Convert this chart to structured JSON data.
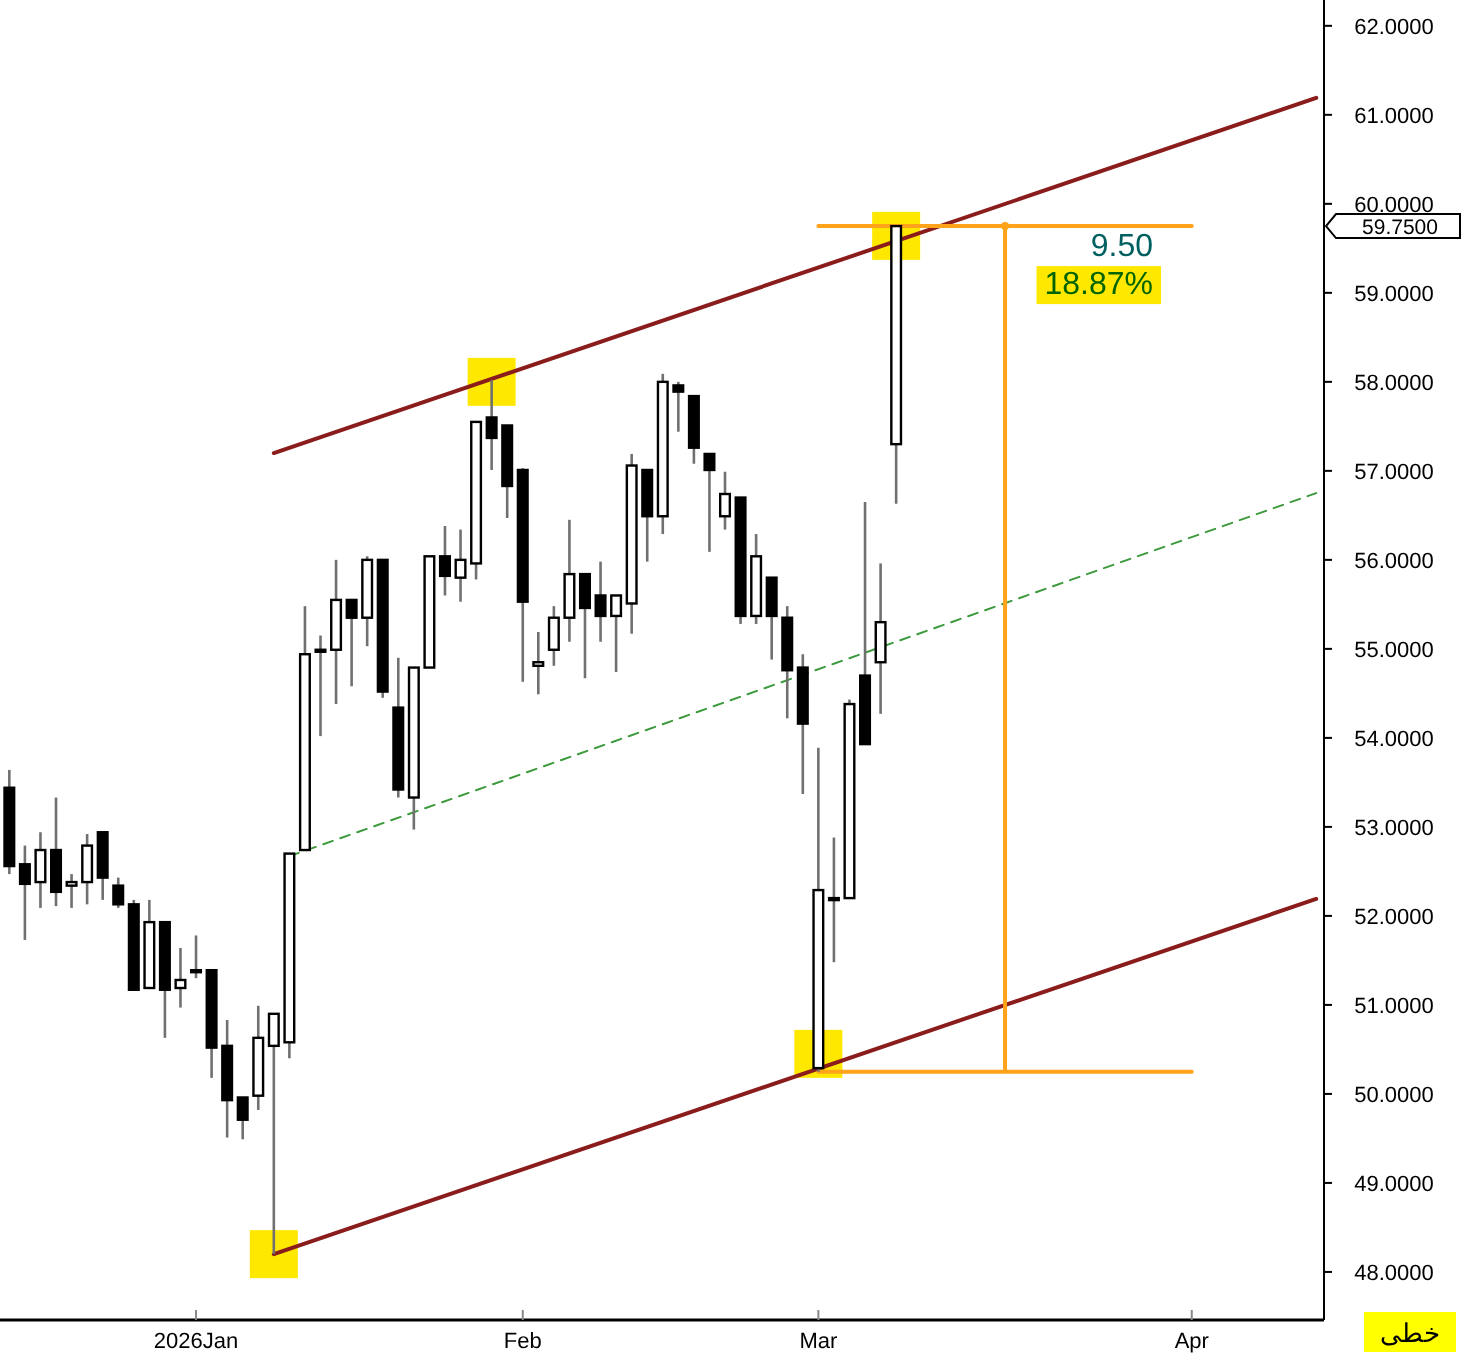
{
  "chart_data": {
    "type": "candlestick",
    "categories": [
      null,
      null,
      null,
      null,
      null,
      null,
      null,
      null,
      null,
      null,
      null,
      null,
      "2026Jan",
      null,
      null,
      null,
      null,
      null,
      null,
      null,
      null,
      null,
      null,
      null,
      null,
      null,
      null,
      null,
      null,
      null,
      null,
      null,
      null,
      "Feb",
      null,
      null,
      null,
      null,
      null,
      null,
      null,
      null,
      null,
      null,
      null,
      null,
      null,
      null,
      null,
      null,
      null,
      null,
      "Mar",
      null,
      null,
      null,
      null,
      null,
      null,
      null,
      null,
      null,
      null,
      null,
      null,
      null,
      null,
      null,
      null,
      null,
      null,
      null,
      null,
      null,
      null,
      null,
      "Apr",
      null,
      null,
      null,
      null,
      null,
      null,
      null,
      null
    ],
    "ohlc": [
      [
        53.44,
        53.64,
        52.47,
        52.56
      ],
      [
        52.58,
        52.79,
        51.73,
        52.36
      ],
      [
        52.38,
        52.94,
        52.09,
        52.74
      ],
      [
        52.74,
        53.33,
        52.11,
        52.27
      ],
      [
        52.34,
        52.47,
        52.09,
        52.38
      ],
      [
        52.38,
        52.92,
        52.13,
        52.79
      ],
      [
        52.94,
        52.94,
        52.18,
        52.43
      ],
      [
        52.34,
        52.43,
        52.09,
        52.13
      ],
      [
        52.13,
        52.18,
        51.17,
        51.17
      ],
      [
        51.19,
        52.18,
        51.19,
        51.93
      ],
      [
        51.93,
        51.93,
        50.63,
        51.17
      ],
      [
        51.19,
        51.64,
        50.97,
        51.28
      ],
      [
        51.39,
        51.78,
        51.3,
        51.39
      ],
      [
        51.39,
        51.39,
        50.18,
        50.52
      ],
      [
        50.54,
        50.83,
        49.51,
        49.93
      ],
      [
        49.96,
        49.96,
        49.49,
        49.71
      ],
      [
        49.98,
        50.99,
        49.82,
        50.63
      ],
      [
        50.54,
        50.9,
        48.2,
        50.9
      ],
      [
        50.58,
        52.7,
        50.4,
        52.7
      ],
      [
        52.74,
        55.48,
        52.74,
        54.94
      ],
      [
        54.99,
        55.15,
        54.02,
        54.99
      ],
      [
        54.99,
        56.0,
        54.38,
        55.55
      ],
      [
        55.55,
        55.55,
        54.58,
        55.35
      ],
      [
        55.35,
        56.04,
        55.03,
        56.0
      ],
      [
        56.0,
        56.0,
        54.45,
        54.52
      ],
      [
        54.34,
        54.9,
        53.33,
        53.42
      ],
      [
        53.33,
        54.79,
        52.97,
        54.79
      ],
      [
        54.79,
        56.04,
        54.79,
        56.04
      ],
      [
        56.04,
        56.38,
        55.6,
        55.82
      ],
      [
        55.8,
        56.34,
        55.53,
        56.0
      ],
      [
        55.96,
        57.55,
        55.78,
        57.55
      ],
      [
        57.6,
        58.02,
        57.01,
        57.37
      ],
      [
        57.51,
        57.51,
        56.47,
        56.83
      ],
      [
        57.01,
        57.03,
        54.63,
        55.53
      ],
      [
        54.81,
        55.19,
        54.49,
        54.85
      ],
      [
        54.99,
        55.48,
        54.81,
        55.35
      ],
      [
        55.35,
        56.45,
        55.08,
        55.84
      ],
      [
        55.84,
        55.84,
        54.67,
        55.46
      ],
      [
        55.6,
        55.98,
        55.08,
        55.37
      ],
      [
        55.37,
        55.6,
        54.74,
        55.6
      ],
      [
        55.51,
        57.19,
        55.17,
        57.06
      ],
      [
        57.01,
        57.01,
        55.98,
        56.49
      ],
      [
        56.49,
        58.09,
        56.29,
        58.0
      ],
      [
        57.96,
        58.0,
        57.44,
        57.89
      ],
      [
        57.84,
        57.84,
        57.08,
        57.26
      ],
      [
        57.19,
        57.19,
        56.09,
        57.01
      ],
      [
        56.49,
        56.99,
        56.34,
        56.74
      ],
      [
        56.7,
        56.7,
        55.28,
        55.37
      ],
      [
        55.37,
        56.29,
        55.28,
        56.04
      ],
      [
        55.8,
        55.8,
        54.88,
        55.37
      ],
      [
        55.35,
        55.48,
        54.22,
        54.76
      ],
      [
        54.79,
        54.94,
        53.37,
        54.16
      ],
      [
        50.29,
        53.89,
        50.25,
        52.29
      ],
      [
        52.2,
        52.88,
        51.48,
        52.2
      ],
      [
        52.2,
        54.43,
        52.2,
        54.38
      ],
      [
        54.7,
        56.65,
        53.93,
        53.93
      ],
      [
        54.85,
        55.96,
        54.27,
        55.3
      ],
      [
        57.3,
        59.75,
        56.63,
        59.75
      ],
      null,
      null,
      null,
      null,
      null,
      null,
      null,
      null,
      null,
      null,
      null,
      null,
      null,
      null,
      null,
      null,
      null,
      null,
      null,
      null,
      null,
      null,
      null,
      null,
      null,
      null,
      null
    ],
    "series": [
      {
        "type": "scatter",
        "marker": "square",
        "color": "#ffe800",
        "values": [
          null,
          null,
          null,
          null,
          null,
          null,
          null,
          null,
          null,
          null,
          null,
          null,
          null,
          null,
          null,
          null,
          null,
          48.2,
          null,
          null,
          null,
          null,
          null,
          null,
          null,
          null,
          null,
          null,
          null,
          null,
          null,
          58.0,
          null,
          null,
          null,
          null,
          null,
          null,
          null,
          null,
          null,
          null,
          null,
          null,
          null,
          null,
          null,
          null,
          null,
          null,
          null,
          null,
          50.45,
          null,
          null,
          null,
          null,
          59.64,
          null,
          null,
          null,
          null,
          null,
          null,
          null,
          null,
          null,
          null,
          null,
          null,
          null,
          null,
          null,
          null,
          null,
          null,
          null,
          null,
          null,
          null,
          null,
          null,
          null,
          null,
          null
        ]
      },
      {
        "type": "line",
        "color": "#8b1c1c",
        "values": [
          null,
          null,
          null,
          null,
          null,
          null,
          null,
          null,
          null,
          null,
          null,
          null,
          null,
          null,
          null,
          null,
          null,
          57.2,
          null,
          null,
          null,
          null,
          null,
          null,
          null,
          null,
          null,
          null,
          null,
          null,
          null,
          null,
          null,
          null,
          null,
          null,
          null,
          null,
          null,
          null,
          null,
          null,
          null,
          null,
          null,
          null,
          null,
          null,
          null,
          null,
          null,
          null,
          null,
          null,
          null,
          null,
          null,
          null,
          null,
          null,
          null,
          null,
          null,
          null,
          null,
          null,
          null,
          null,
          null,
          null,
          null,
          null,
          null,
          null,
          null,
          null,
          null,
          null,
          null,
          null,
          null,
          null,
          null,
          null,
          61.19
        ]
      },
      {
        "type": "line",
        "color": "#8b1c1c",
        "values": [
          null,
          null,
          null,
          null,
          null,
          null,
          null,
          null,
          null,
          null,
          null,
          null,
          null,
          null,
          null,
          null,
          null,
          48.2,
          null,
          null,
          null,
          null,
          null,
          null,
          null,
          null,
          null,
          null,
          null,
          null,
          null,
          null,
          null,
          null,
          null,
          null,
          null,
          null,
          null,
          null,
          null,
          null,
          null,
          null,
          null,
          null,
          null,
          null,
          null,
          null,
          null,
          null,
          null,
          null,
          null,
          null,
          null,
          null,
          null,
          null,
          null,
          null,
          null,
          null,
          null,
          null,
          null,
          null,
          null,
          null,
          null,
          null,
          null,
          null,
          null,
          null,
          null,
          null,
          null,
          null,
          null,
          null,
          null,
          null,
          52.19
        ]
      },
      {
        "type": "line",
        "color": "#3c9a3c",
        "line_style": "dashed",
        "values": [
          null,
          null,
          null,
          null,
          null,
          null,
          null,
          null,
          null,
          null,
          null,
          null,
          null,
          null,
          null,
          null,
          null,
          null,
          52.67,
          null,
          null,
          null,
          null,
          null,
          null,
          null,
          null,
          null,
          null,
          null,
          null,
          null,
          null,
          null,
          null,
          null,
          null,
          null,
          null,
          null,
          null,
          null,
          null,
          null,
          null,
          null,
          null,
          null,
          null,
          null,
          null,
          null,
          null,
          null,
          null,
          null,
          null,
          null,
          null,
          null,
          null,
          null,
          null,
          null,
          null,
          null,
          null,
          null,
          null,
          null,
          null,
          null,
          null,
          null,
          null,
          null,
          null,
          null,
          null,
          null,
          null,
          null,
          null,
          null,
          56.75
        ]
      },
      {
        "type": "line",
        "color": "#ffa31a",
        "values": [
          null,
          null,
          null,
          null,
          null,
          null,
          null,
          null,
          null,
          null,
          null,
          null,
          null,
          null,
          null,
          null,
          null,
          null,
          null,
          null,
          null,
          null,
          null,
          null,
          null,
          null,
          null,
          null,
          null,
          null,
          null,
          null,
          null,
          null,
          null,
          null,
          null,
          null,
          null,
          null,
          null,
          null,
          null,
          null,
          null,
          null,
          null,
          null,
          null,
          null,
          null,
          null,
          59.75,
          null,
          null,
          null,
          null,
          null,
          null,
          null,
          null,
          null,
          null,
          null,
          null,
          null,
          null,
          null,
          null,
          null,
          null,
          null,
          null,
          null,
          null,
          null,
          59.75,
          null,
          null,
          null,
          null,
          null,
          null,
          null,
          null
        ]
      },
      {
        "type": "line",
        "color": "#ffa31a",
        "values": [
          null,
          null,
          null,
          null,
          null,
          null,
          null,
          null,
          null,
          null,
          null,
          null,
          null,
          null,
          null,
          null,
          null,
          null,
          null,
          null,
          null,
          null,
          null,
          null,
          null,
          null,
          null,
          null,
          null,
          null,
          null,
          null,
          null,
          null,
          null,
          null,
          null,
          null,
          null,
          null,
          null,
          null,
          null,
          null,
          null,
          null,
          null,
          null,
          null,
          null,
          null,
          null,
          50.25,
          null,
          null,
          null,
          null,
          null,
          null,
          null,
          null,
          null,
          null,
          null,
          null,
          null,
          null,
          null,
          null,
          null,
          null,
          null,
          null,
          null,
          null,
          null,
          50.25,
          null,
          null,
          null,
          null,
          null,
          null,
          null,
          null
        ]
      },
      {
        "type": "scatter",
        "marker": "circle",
        "color": "#ffa31a",
        "values": [
          null,
          null,
          null,
          null,
          null,
          null,
          null,
          null,
          null,
          null,
          null,
          null,
          null,
          null,
          null,
          null,
          null,
          null,
          null,
          null,
          null,
          null,
          null,
          null,
          null,
          null,
          null,
          null,
          null,
          null,
          null,
          null,
          null,
          null,
          null,
          null,
          null,
          null,
          null,
          null,
          null,
          null,
          null,
          null,
          null,
          null,
          null,
          null,
          null,
          null,
          null,
          null,
          null,
          null,
          null,
          null,
          null,
          null,
          null,
          null,
          null,
          null,
          null,
          null,
          59.75,
          null,
          null,
          null,
          null,
          null,
          null,
          null,
          null,
          null,
          null,
          null,
          null,
          null,
          null,
          null,
          null,
          null,
          null,
          null,
          null
        ],
        "errors": [
          null,
          null,
          null,
          null,
          null,
          null,
          null,
          null,
          null,
          null,
          null,
          null,
          null,
          null,
          null,
          null,
          null,
          null,
          null,
          null,
          null,
          null,
          null,
          null,
          null,
          null,
          null,
          null,
          null,
          null,
          null,
          null,
          null,
          null,
          null,
          null,
          null,
          null,
          null,
          null,
          null,
          null,
          null,
          null,
          null,
          null,
          null,
          null,
          null,
          null,
          null,
          null,
          null,
          null,
          null,
          null,
          null,
          null,
          null,
          null,
          null,
          null,
          null,
          null,
          [
            50.25,
            59.75
          ],
          null,
          null,
          null,
          null,
          null,
          null,
          null,
          null,
          null,
          null,
          null,
          null,
          null,
          null,
          null,
          null,
          null,
          null,
          null,
          null
        ]
      }
    ],
    "ylim": [
      47.46,
      62.29
    ],
    "yticks": [
      {
        "value": 48,
        "label": "48.0000"
      },
      {
        "value": 49,
        "label": "49.0000"
      },
      {
        "value": 50,
        "label": "50.0000"
      },
      {
        "value": 51,
        "label": "51.0000"
      },
      {
        "value": 52,
        "label": "52.0000"
      },
      {
        "value": 53,
        "label": "53.0000"
      },
      {
        "value": 54,
        "label": "54.0000"
      },
      {
        "value": 55,
        "label": "55.0000"
      },
      {
        "value": 56,
        "label": "56.0000"
      },
      {
        "value": 57,
        "label": "57.0000"
      },
      {
        "value": 58,
        "label": "58.0000"
      },
      {
        "value": 59,
        "label": "59.0000"
      },
      {
        "value": 60,
        "label": "60.0000"
      },
      {
        "value": 61,
        "label": "61.0000"
      },
      {
        "value": 62,
        "label": "62.0000"
      }
    ],
    "annotations": [
      "9.50",
      "18.87%",
      "59.7500",
      "خطی"
    ]
  }
}
